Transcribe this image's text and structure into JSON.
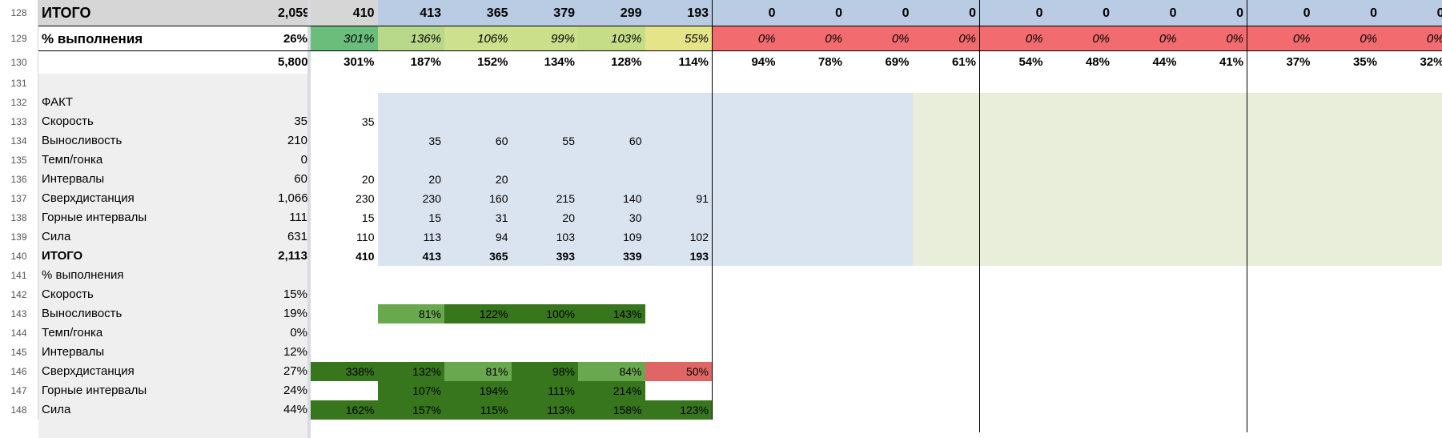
{
  "sheet": {
    "colors": {
      "gray_total": "#d6d6d6",
      "gray_light": "#efefef",
      "blue_light": "#dae3f0",
      "blue_mid": "#b9cce4",
      "green_light": "#e9eedb",
      "dark_green": "#38761d",
      "mid_green": "#6aa84f",
      "red": "#f26b6f",
      "red_soft": "#e06666"
    },
    "rows": [
      {
        "num": "128",
        "height": 33,
        "type": "itogo_top",
        "label": "ИТОГО",
        "b": "2,059",
        "values": [
          "410",
          "413",
          "365",
          "379",
          "299",
          "193",
          "0",
          "0",
          "0",
          "0",
          "0",
          "0",
          "0",
          "0",
          "0",
          "0",
          "0"
        ]
      },
      {
        "num": "129",
        "height": 31,
        "type": "pct_top",
        "label": "% выполнения",
        "b": "26%",
        "values": [
          "301%",
          "136%",
          "106%",
          "99%",
          "103%",
          "55%",
          "0%",
          "0%",
          "0%",
          "0%",
          "0%",
          "0%",
          "0%",
          "0%",
          "0%",
          "0%",
          "0%"
        ],
        "fills": [
          "#6bbd7b",
          "#b8d98a",
          "#cde08d",
          "#c9df8a",
          "#c6dd88",
          "#e6e488",
          "#f26b6f",
          "#f26b6f",
          "#f26b6f",
          "#f26b6f",
          "#f26b6f",
          "#f26b6f",
          "#f26b6f",
          "#f26b6f",
          "#f26b6f",
          "#f26b6f",
          "#f26b6f"
        ]
      },
      {
        "num": "130",
        "height": 28,
        "type": "scale",
        "label": "",
        "b": "5,800",
        "values": [
          "301%",
          "187%",
          "152%",
          "134%",
          "128%",
          "114%",
          "94%",
          "78%",
          "69%",
          "61%",
          "54%",
          "48%",
          "44%",
          "41%",
          "37%",
          "35%",
          "32%"
        ]
      },
      {
        "num": "131",
        "height": 24,
        "type": "blank",
        "label": "",
        "b": "",
        "values": []
      },
      {
        "num": "132",
        "height": 24,
        "type": "fact",
        "label": "ФАКТ",
        "b": "",
        "values": []
      },
      {
        "num": "133",
        "height": 24,
        "type": "fact",
        "label": "Скорость",
        "b": "35",
        "values": [
          "35"
        ]
      },
      {
        "num": "134",
        "height": 24,
        "type": "fact",
        "label": "Выносливость",
        "b": "210",
        "values": [
          "",
          "35",
          "60",
          "55",
          "60"
        ]
      },
      {
        "num": "135",
        "height": 24,
        "type": "fact",
        "label": "Темп/гонка",
        "b": "0",
        "values": []
      },
      {
        "num": "136",
        "height": 24,
        "type": "fact",
        "label": "Интервалы",
        "b": "60",
        "values": [
          "20",
          "20",
          "20"
        ]
      },
      {
        "num": "137",
        "height": 24,
        "type": "fact",
        "label": "Сверхдистанция",
        "b": "1,066",
        "values": [
          "230",
          "230",
          "160",
          "215",
          "140",
          "91"
        ]
      },
      {
        "num": "138",
        "height": 24,
        "type": "fact",
        "label": "Горные интервалы",
        "b": "111",
        "values": [
          "15",
          "15",
          "31",
          "20",
          "30"
        ]
      },
      {
        "num": "139",
        "height": 24,
        "type": "fact",
        "label": "Сила",
        "b": "631",
        "values": [
          "110",
          "113",
          "94",
          "103",
          "109",
          "102"
        ]
      },
      {
        "num": "140",
        "height": 24,
        "type": "fact_total",
        "label": "ИТОГО",
        "b": "2,113",
        "values": [
          "410",
          "413",
          "365",
          "393",
          "339",
          "193"
        ]
      },
      {
        "num": "141",
        "height": 24,
        "type": "pct",
        "label": "% выполнения",
        "b": "",
        "values": [],
        "fills": []
      },
      {
        "num": "142",
        "height": 24,
        "type": "pct",
        "label": "Скорость",
        "b": "15%",
        "values": [],
        "fills": []
      },
      {
        "num": "143",
        "height": 24,
        "type": "pct",
        "label": "Выносливость",
        "b": "19%",
        "values": [
          "",
          "81%",
          "122%",
          "100%",
          "143%"
        ],
        "fills": [
          "",
          "#6aa84f",
          "#38761d",
          "#38761d",
          "#38761d"
        ]
      },
      {
        "num": "144",
        "height": 24,
        "type": "pct",
        "label": "Темп/гонка",
        "b": "0%",
        "values": [],
        "fills": []
      },
      {
        "num": "145",
        "height": 24,
        "type": "pct",
        "label": "Интервалы",
        "b": "12%",
        "values": [],
        "fills": []
      },
      {
        "num": "146",
        "height": 24,
        "type": "pct",
        "label": "Сверхдистанция",
        "b": "27%",
        "values": [
          "338%",
          "132%",
          "81%",
          "98%",
          "84%",
          "50%"
        ],
        "fills": [
          "#38761d",
          "#38761d",
          "#6aa84f",
          "#38761d",
          "#6aa84f",
          "#e06666"
        ]
      },
      {
        "num": "147",
        "height": 24,
        "type": "pct",
        "label": "Горные интервалы",
        "b": "24%",
        "values": [
          "",
          "107%",
          "194%",
          "111%",
          "214%"
        ],
        "fills": [
          "",
          "#38761d",
          "#38761d",
          "#38761d",
          "#38761d"
        ]
      },
      {
        "num": "148",
        "height": 24,
        "type": "pct",
        "label": "Сила",
        "b": "44%",
        "values": [
          "162%",
          "157%",
          "115%",
          "113%",
          "158%",
          "123%"
        ],
        "fills": [
          "#38761d",
          "#38761d",
          "#38761d",
          "#38761d",
          "#38761d",
          "#38761d"
        ]
      }
    ]
  }
}
